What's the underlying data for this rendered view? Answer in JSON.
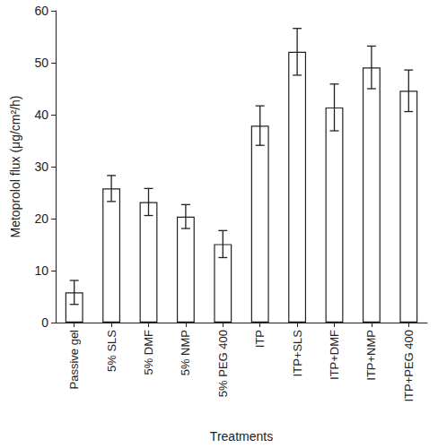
{
  "chart_data": {
    "type": "bar",
    "x_label": "Treatments",
    "y_label": "Metoprolol flux (μg/cm²/h)",
    "categories": [
      "Passive gel",
      "5% SLS",
      "5% DMF",
      "5% NMP",
      "5% PEG 400",
      "ITP",
      "ITP+SLS",
      "ITP+DMF",
      "ITP+NMP",
      "ITP+PEG 400"
    ],
    "values": [
      5.8,
      25.8,
      23.2,
      20.4,
      15.1,
      37.9,
      52.1,
      41.4,
      49.1,
      44.6
    ],
    "errors": [
      2.3,
      2.5,
      2.6,
      2.3,
      2.6,
      3.8,
      4.5,
      4.5,
      4.1,
      4.0
    ],
    "color": "#ffffff",
    "ylim": [
      0,
      60
    ],
    "yticks": [
      0,
      10,
      20,
      30,
      40,
      50,
      60
    ],
    "grid": false
  }
}
